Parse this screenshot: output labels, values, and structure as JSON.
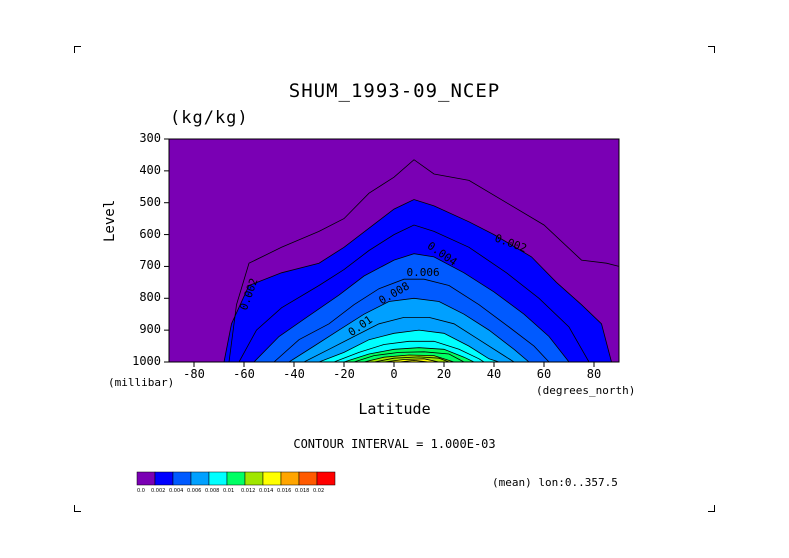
{
  "chart_data": {
    "type": "contour",
    "title": "SHUM_1993-09_NCEP",
    "units": "(kg/kg)",
    "xlabel": "Latitude",
    "ylabel": "Level",
    "x_unit_label": "(degrees_north)",
    "y_unit_label": "(millibar)",
    "x_ticks": [
      "-80",
      "-60",
      "-40",
      "-20",
      "0",
      "20",
      "40",
      "60",
      "80"
    ],
    "y_ticks": [
      "300",
      "400",
      "500",
      "600",
      "700",
      "800",
      "900",
      "1000"
    ],
    "xlim": [
      -90,
      90
    ],
    "ylim": [
      1000,
      300
    ],
    "contour_interval_text": "CONTOUR INTERVAL = 1.000E-03",
    "mean_text": "(mean) lon:0..357.5",
    "contour_labels": [
      "0.002",
      "0.004",
      "0.006",
      "0.008",
      "0.01",
      "0.002"
    ],
    "colorbar": {
      "colors": [
        "#7a00b4",
        "#0000ff",
        "#005aff",
        "#00a0ff",
        "#00ffff",
        "#00ff64",
        "#a0e600",
        "#ffff00",
        "#ffa500",
        "#ff5a00",
        "#ff0000"
      ],
      "labels": [
        "0.0",
        "0.002",
        "0.004",
        "0.006",
        "0.008",
        "0.01",
        "0.012",
        "0.014",
        "0.016",
        "0.018",
        "0.02"
      ]
    },
    "levels": [
      {
        "value": 0.001,
        "pts": [
          [
            -66,
            1000
          ],
          [
            -63,
            820
          ],
          [
            -58,
            690
          ],
          [
            -45,
            640
          ],
          [
            -30,
            590
          ],
          [
            -20,
            550
          ],
          [
            -10,
            470
          ],
          [
            0,
            420
          ],
          [
            8,
            365
          ],
          [
            16,
            410
          ],
          [
            30,
            430
          ],
          [
            45,
            500
          ],
          [
            60,
            570
          ],
          [
            75,
            680
          ],
          [
            85,
            690
          ],
          [
            90,
            700
          ],
          [
            90,
            1000
          ]
        ]
      },
      {
        "value": 0.002,
        "pts": [
          [
            -68,
            1000
          ],
          [
            -65,
            880
          ],
          [
            -58,
            760
          ],
          [
            -45,
            720
          ],
          [
            -30,
            690
          ],
          [
            -20,
            640
          ],
          [
            -10,
            580
          ],
          [
            0,
            520
          ],
          [
            8,
            490
          ],
          [
            16,
            510
          ],
          [
            30,
            560
          ],
          [
            40,
            600
          ],
          [
            55,
            670
          ],
          [
            65,
            750
          ],
          [
            75,
            820
          ],
          [
            83,
            880
          ],
          [
            87,
            1000
          ]
        ]
      },
      {
        "value": 0.003,
        "pts": [
          [
            -62,
            1000
          ],
          [
            -55,
            900
          ],
          [
            -45,
            830
          ],
          [
            -30,
            760
          ],
          [
            -20,
            710
          ],
          [
            -10,
            650
          ],
          [
            0,
            600
          ],
          [
            8,
            570
          ],
          [
            16,
            590
          ],
          [
            30,
            640
          ],
          [
            45,
            720
          ],
          [
            58,
            800
          ],
          [
            70,
            890
          ],
          [
            78,
            1000
          ]
        ]
      },
      {
        "value": 0.004,
        "pts": [
          [
            -56,
            1000
          ],
          [
            -46,
            920
          ],
          [
            -35,
            860
          ],
          [
            -22,
            790
          ],
          [
            -12,
            730
          ],
          [
            0,
            680
          ],
          [
            8,
            660
          ],
          [
            16,
            670
          ],
          [
            28,
            720
          ],
          [
            40,
            780
          ],
          [
            52,
            850
          ],
          [
            62,
            920
          ],
          [
            70,
            1000
          ]
        ]
      },
      {
        "value": 0.005,
        "pts": [
          [
            -48,
            1000
          ],
          [
            -38,
            930
          ],
          [
            -26,
            880
          ],
          [
            -16,
            820
          ],
          [
            -6,
            770
          ],
          [
            4,
            740
          ],
          [
            12,
            740
          ],
          [
            22,
            760
          ],
          [
            34,
            820
          ],
          [
            46,
            890
          ],
          [
            56,
            950
          ],
          [
            62,
            1000
          ]
        ]
      },
      {
        "value": 0.006,
        "pts": [
          [
            -42,
            1000
          ],
          [
            -32,
            950
          ],
          [
            -22,
            900
          ],
          [
            -12,
            850
          ],
          [
            -2,
            810
          ],
          [
            8,
            800
          ],
          [
            18,
            810
          ],
          [
            28,
            850
          ],
          [
            38,
            900
          ],
          [
            48,
            960
          ],
          [
            54,
            1000
          ]
        ]
      },
      {
        "value": 0.007,
        "pts": [
          [
            -36,
            1000
          ],
          [
            -26,
            960
          ],
          [
            -16,
            920
          ],
          [
            -6,
            880
          ],
          [
            4,
            860
          ],
          [
            14,
            860
          ],
          [
            24,
            880
          ],
          [
            34,
            930
          ],
          [
            44,
            980
          ],
          [
            48,
            1000
          ]
        ]
      },
      {
        "value": 0.008,
        "pts": [
          [
            -30,
            1000
          ],
          [
            -20,
            970
          ],
          [
            -10,
            930
          ],
          [
            0,
            910
          ],
          [
            10,
            900
          ],
          [
            20,
            910
          ],
          [
            30,
            950
          ],
          [
            38,
            990
          ],
          [
            42,
            1000
          ]
        ]
      },
      {
        "value": 0.009,
        "pts": [
          [
            -24,
            1000
          ],
          [
            -14,
            970
          ],
          [
            -4,
            945
          ],
          [
            6,
            935
          ],
          [
            16,
            935
          ],
          [
            26,
            960
          ],
          [
            34,
            990
          ],
          [
            36,
            1000
          ]
        ]
      },
      {
        "value": 0.01,
        "pts": [
          [
            -20,
            1000
          ],
          [
            -10,
            975
          ],
          [
            0,
            960
          ],
          [
            10,
            955
          ],
          [
            20,
            960
          ],
          [
            28,
            985
          ],
          [
            32,
            1000
          ]
        ]
      },
      {
        "value": 0.011,
        "pts": [
          [
            -16,
            1000
          ],
          [
            -8,
            980
          ],
          [
            2,
            970
          ],
          [
            12,
            968
          ],
          [
            22,
            975
          ],
          [
            28,
            1000
          ]
        ]
      },
      {
        "value": 0.012,
        "pts": [
          [
            -12,
            1000
          ],
          [
            -4,
            985
          ],
          [
            6,
            978
          ],
          [
            16,
            980
          ],
          [
            24,
            1000
          ]
        ]
      },
      {
        "value": 0.013,
        "pts": [
          [
            -8,
            1000
          ],
          [
            0,
            988
          ],
          [
            10,
            984
          ],
          [
            18,
            988
          ],
          [
            22,
            1000
          ]
        ]
      },
      {
        "value": 0.014,
        "pts": [
          [
            -4,
            1000
          ],
          [
            4,
            992
          ],
          [
            12,
            990
          ],
          [
            18,
            1000
          ]
        ]
      },
      {
        "value": 0.015,
        "pts": [
          [
            2,
            1000
          ],
          [
            8,
            995
          ],
          [
            14,
            1000
          ]
        ]
      }
    ]
  }
}
